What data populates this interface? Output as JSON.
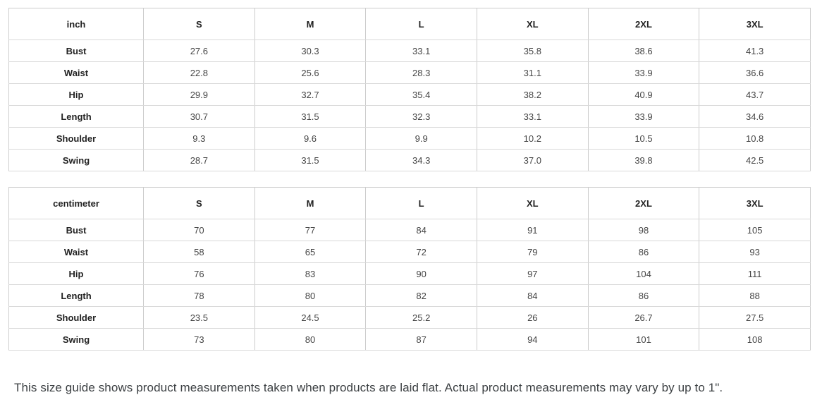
{
  "tables": [
    {
      "unit_label": "inch",
      "columns": [
        "S",
        "M",
        "L",
        "XL",
        "2XL",
        "3XL"
      ],
      "rows": [
        {
          "label": "Bust",
          "values": [
            "27.6",
            "30.3",
            "33.1",
            "35.8",
            "38.6",
            "41.3"
          ]
        },
        {
          "label": "Waist",
          "values": [
            "22.8",
            "25.6",
            "28.3",
            "31.1",
            "33.9",
            "36.6"
          ]
        },
        {
          "label": "Hip",
          "values": [
            "29.9",
            "32.7",
            "35.4",
            "38.2",
            "40.9",
            "43.7"
          ]
        },
        {
          "label": "Length",
          "values": [
            "30.7",
            "31.5",
            "32.3",
            "33.1",
            "33.9",
            "34.6"
          ]
        },
        {
          "label": "Shoulder",
          "values": [
            "9.3",
            "9.6",
            "9.9",
            "10.2",
            "10.5",
            "10.8"
          ]
        },
        {
          "label": "Swing",
          "values": [
            "28.7",
            "31.5",
            "34.3",
            "37.0",
            "39.8",
            "42.5"
          ]
        }
      ]
    },
    {
      "unit_label": "centimeter",
      "columns": [
        "S",
        "M",
        "L",
        "XL",
        "2XL",
        "3XL"
      ],
      "rows": [
        {
          "label": "Bust",
          "values": [
            "70",
            "77",
            "84",
            "91",
            "98",
            "105"
          ]
        },
        {
          "label": "Waist",
          "values": [
            "58",
            "65",
            "72",
            "79",
            "86",
            "93"
          ]
        },
        {
          "label": "Hip",
          "values": [
            "76",
            "83",
            "90",
            "97",
            "104",
            "111"
          ]
        },
        {
          "label": "Length",
          "values": [
            "78",
            "80",
            "82",
            "84",
            "86",
            "88"
          ]
        },
        {
          "label": "Shoulder",
          "values": [
            "23.5",
            "24.5",
            "25.2",
            "26",
            "26.7",
            "27.5"
          ]
        },
        {
          "label": "Swing",
          "values": [
            "73",
            "80",
            "87",
            "94",
            "101",
            "108"
          ]
        }
      ]
    }
  ],
  "footer": {
    "note": "This size guide shows product measurements taken when products are laid flat. Actual product measurements may vary by up to 1\"."
  }
}
